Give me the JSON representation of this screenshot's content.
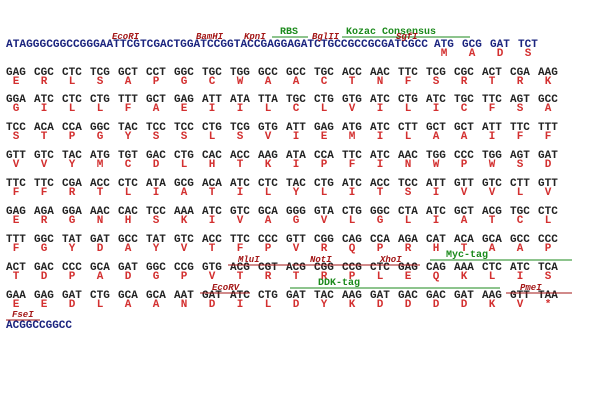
{
  "rows": [
    {
      "prefix": "ATAGGGCGGCCGGGAATTCGTCGACTGGATCCGGTACCGAGGAGATCTGCCGCCGCGATCGCC",
      "codons": [
        "ATG",
        "GCG",
        "GAT",
        "TCT"
      ],
      "aa": [
        "M",
        "A",
        "D",
        "S"
      ],
      "features": [
        "EcoRI",
        "BamHI",
        "KpnI",
        "RBS",
        "BglII",
        "Kozac Consensus",
        "SgfI"
      ]
    },
    {
      "codons": [
        "GAG",
        "CGC",
        "CTC",
        "TCG",
        "GCT",
        "CCT",
        "GGC",
        "TGC",
        "TGG",
        "GCC",
        "GCC",
        "TGC",
        "ACC",
        "AAC",
        "TTC",
        "TCG",
        "CGC",
        "ACT",
        "CGA",
        "AAG"
      ],
      "aa": [
        "E",
        "R",
        "L",
        "S",
        "A",
        "P",
        "G",
        "C",
        "W",
        "A",
        "A",
        "C",
        "T",
        "N",
        "F",
        "S",
        "R",
        "T",
        "R",
        "K"
      ]
    },
    {
      "codons": [
        "GGA",
        "ATC",
        "CTC",
        "CTG",
        "TTT",
        "GCT",
        "GAG",
        "ATT",
        "ATA",
        "TTA",
        "TGC",
        "CTG",
        "GTG",
        "ATC",
        "CTG",
        "ATC",
        "TGC",
        "TTC",
        "AGT",
        "GCC"
      ],
      "aa": [
        "G",
        "I",
        "L",
        "L",
        "F",
        "A",
        "E",
        "I",
        "I",
        "L",
        "C",
        "L",
        "V",
        "I",
        "L",
        "I",
        "C",
        "F",
        "S",
        "A"
      ]
    },
    {
      "codons": [
        "TCC",
        "ACA",
        "CCA",
        "GGC",
        "TAC",
        "TCC",
        "TCC",
        "CTG",
        "TCG",
        "GTG",
        "ATT",
        "GAG",
        "ATG",
        "ATC",
        "CTT",
        "GCT",
        "GCT",
        "ATT",
        "TTC",
        "TTT"
      ],
      "aa": [
        "S",
        "T",
        "P",
        "G",
        "Y",
        "S",
        "S",
        "L",
        "S",
        "V",
        "I",
        "E",
        "M",
        "I",
        "L",
        "A",
        "A",
        "I",
        "F",
        "F"
      ]
    },
    {
      "codons": [
        "GTT",
        "GTC",
        "TAC",
        "ATG",
        "TGT",
        "GAC",
        "CTG",
        "CAC",
        "ACC",
        "AAG",
        "ATA",
        "CCA",
        "TTC",
        "ATC",
        "AAC",
        "TGG",
        "CCC",
        "TGG",
        "AGT",
        "GAT"
      ],
      "aa": [
        "V",
        "V",
        "Y",
        "M",
        "C",
        "D",
        "L",
        "H",
        "T",
        "K",
        "I",
        "P",
        "F",
        "I",
        "N",
        "W",
        "P",
        "W",
        "S",
        "D"
      ]
    },
    {
      "codons": [
        "TTC",
        "TTC",
        "CGA",
        "ACC",
        "CTC",
        "ATA",
        "GCG",
        "ACA",
        "ATC",
        "CTC",
        "TAC",
        "CTG",
        "ATC",
        "ACC",
        "TCC",
        "ATT",
        "GTT",
        "GTC",
        "CTT",
        "GTT"
      ],
      "aa": [
        "F",
        "F",
        "R",
        "T",
        "L",
        "I",
        "A",
        "T",
        "I",
        "L",
        "Y",
        "L",
        "I",
        "T",
        "S",
        "I",
        "V",
        "V",
        "L",
        "V"
      ]
    },
    {
      "codons": [
        "GAG",
        "AGA",
        "GGA",
        "AAC",
        "CAC",
        "TCC",
        "AAA",
        "ATC",
        "GTC",
        "GCA",
        "GGG",
        "GTA",
        "CTG",
        "GGC",
        "CTA",
        "ATC",
        "GCT",
        "ACG",
        "TGC",
        "CTC"
      ],
      "aa": [
        "E",
        "R",
        "G",
        "N",
        "H",
        "S",
        "K",
        "I",
        "V",
        "A",
        "G",
        "V",
        "L",
        "G",
        "L",
        "I",
        "A",
        "T",
        "C",
        "L"
      ]
    },
    {
      "codons": [
        "TTT",
        "GGC",
        "TAT",
        "GAT",
        "GCC",
        "TAT",
        "GTC",
        "ACC",
        "TTC",
        "CCC",
        "GTT",
        "CGG",
        "CAG",
        "CCA",
        "AGA",
        "CAT",
        "ACA",
        "GCA",
        "GCC",
        "CCC"
      ],
      "aa": [
        "F",
        "G",
        "Y",
        "D",
        "A",
        "Y",
        "V",
        "T",
        "F",
        "P",
        "V",
        "R",
        "Q",
        "P",
        "R",
        "H",
        "T",
        "A",
        "A",
        "P"
      ]
    },
    {
      "codons": [
        "ACT",
        "GAC",
        "CCC",
        "GCA",
        "GAT",
        "GGC",
        "CCG",
        "GTG",
        "ACG",
        "CGT",
        "ACG",
        "CGG",
        "CCG",
        "CTC",
        "GAG",
        "CAG",
        "AAA",
        "CTC",
        "ATC",
        "TCA"
      ],
      "aa": [
        "T",
        "D",
        "P",
        "A",
        "D",
        "G",
        "P",
        "V",
        "T",
        "R",
        "T",
        "R",
        "P",
        "L",
        "E",
        "Q",
        "K",
        "L",
        "I",
        "S"
      ],
      "features": [
        "MluI",
        "NotI",
        "XhoI",
        "Myc-tag"
      ]
    },
    {
      "codons": [
        "GAA",
        "GAG",
        "GAT",
        "CTG",
        "GCA",
        "GCA",
        "AAT",
        "GAT",
        "ATC",
        "CTG",
        "GAT",
        "TAC",
        "AAG",
        "GAT",
        "GAC",
        "GAC",
        "GAT",
        "AAG",
        "GTT",
        "TAA"
      ],
      "aa": [
        "E",
        "E",
        "D",
        "L",
        "A",
        "A",
        "N",
        "D",
        "I",
        "L",
        "D",
        "Y",
        "K",
        "D",
        "D",
        "D",
        "D",
        "K",
        "V",
        "*"
      ],
      "features": [
        "EcoRV",
        "DDK-tag",
        "PmeI"
      ]
    }
  ],
  "tail": {
    "sequence": "ACGGCCGGCC",
    "feature": "FseI"
  }
}
